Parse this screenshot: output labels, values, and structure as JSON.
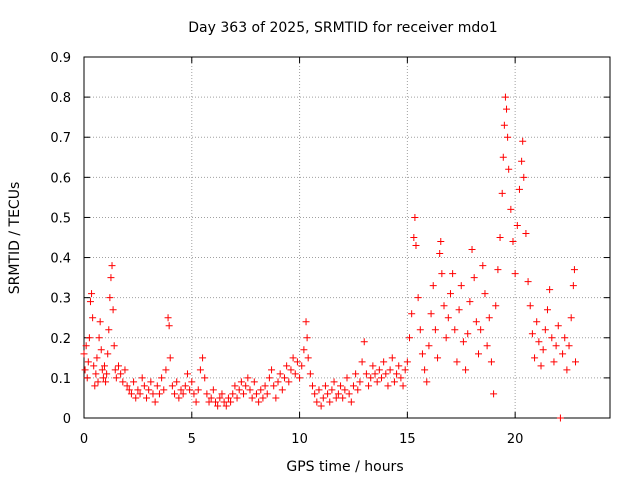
{
  "chart_data": {
    "type": "scatter",
    "title": "Day 363 of 2025, SRMTID for receiver mdo1",
    "xlabel": "GPS time / hours",
    "ylabel": "SRMTID / TECUs",
    "xlim": [
      0,
      24.4
    ],
    "ylim": [
      0,
      0.9
    ],
    "x_ticks": [
      0,
      5,
      10,
      15,
      20
    ],
    "x_tick_labels": [
      "0",
      "5",
      "10",
      "15",
      "20"
    ],
    "y_ticks": [
      0,
      0.1,
      0.2,
      0.3,
      0.4,
      0.5,
      0.6,
      0.7,
      0.8,
      0.9
    ],
    "y_tick_labels": [
      "0",
      "0.1",
      "0.2",
      "0.3",
      "0.4",
      "0.5",
      "0.6",
      "0.7",
      "0.8",
      "0.9"
    ],
    "grid": true,
    "marker": "+",
    "color": "#ff0000",
    "series": [
      {
        "name": "SRMTID",
        "points": [
          [
            0.0,
            0.16
          ],
          [
            0.05,
            0.12
          ],
          [
            0.1,
            0.18
          ],
          [
            0.15,
            0.1
          ],
          [
            0.2,
            0.14
          ],
          [
            0.25,
            0.2
          ],
          [
            0.3,
            0.29
          ],
          [
            0.35,
            0.31
          ],
          [
            0.4,
            0.25
          ],
          [
            0.45,
            0.13
          ],
          [
            0.5,
            0.08
          ],
          [
            0.55,
            0.11
          ],
          [
            0.6,
            0.15
          ],
          [
            0.65,
            0.09
          ],
          [
            0.7,
            0.2
          ],
          [
            0.75,
            0.24
          ],
          [
            0.8,
            0.17
          ],
          [
            0.85,
            0.12
          ],
          [
            0.9,
            0.1
          ],
          [
            0.95,
            0.13
          ],
          [
            1.0,
            0.09
          ],
          [
            1.05,
            0.11
          ],
          [
            1.1,
            0.16
          ],
          [
            1.15,
            0.22
          ],
          [
            1.2,
            0.3
          ],
          [
            1.25,
            0.35
          ],
          [
            1.3,
            0.38
          ],
          [
            1.35,
            0.27
          ],
          [
            1.4,
            0.18
          ],
          [
            1.45,
            0.12
          ],
          [
            1.5,
            0.1
          ],
          [
            1.6,
            0.13
          ],
          [
            1.7,
            0.11
          ],
          [
            1.8,
            0.09
          ],
          [
            1.9,
            0.12
          ],
          [
            2.0,
            0.08
          ],
          [
            2.1,
            0.07
          ],
          [
            2.2,
            0.06
          ],
          [
            2.3,
            0.09
          ],
          [
            2.4,
            0.05
          ],
          [
            2.5,
            0.07
          ],
          [
            2.6,
            0.06
          ],
          [
            2.7,
            0.1
          ],
          [
            2.8,
            0.08
          ],
          [
            2.9,
            0.05
          ],
          [
            3.0,
            0.07
          ],
          [
            3.1,
            0.09
          ],
          [
            3.2,
            0.06
          ],
          [
            3.3,
            0.04
          ],
          [
            3.4,
            0.08
          ],
          [
            3.5,
            0.06
          ],
          [
            3.6,
            0.1
          ],
          [
            3.7,
            0.07
          ],
          [
            3.8,
            0.12
          ],
          [
            3.9,
            0.25
          ],
          [
            3.95,
            0.23
          ],
          [
            4.0,
            0.15
          ],
          [
            4.1,
            0.08
          ],
          [
            4.2,
            0.06
          ],
          [
            4.3,
            0.09
          ],
          [
            4.4,
            0.05
          ],
          [
            4.5,
            0.07
          ],
          [
            4.6,
            0.06
          ],
          [
            4.7,
            0.08
          ],
          [
            4.8,
            0.11
          ],
          [
            4.9,
            0.07
          ],
          [
            5.0,
            0.09
          ],
          [
            5.1,
            0.06
          ],
          [
            5.2,
            0.04
          ],
          [
            5.3,
            0.07
          ],
          [
            5.4,
            0.12
          ],
          [
            5.5,
            0.15
          ],
          [
            5.6,
            0.1
          ],
          [
            5.7,
            0.06
          ],
          [
            5.8,
            0.04
          ],
          [
            5.9,
            0.05
          ],
          [
            6.0,
            0.07
          ],
          [
            6.1,
            0.04
          ],
          [
            6.2,
            0.03
          ],
          [
            6.3,
            0.05
          ],
          [
            6.4,
            0.06
          ],
          [
            6.5,
            0.04
          ],
          [
            6.6,
            0.03
          ],
          [
            6.7,
            0.05
          ],
          [
            6.8,
            0.04
          ],
          [
            6.9,
            0.06
          ],
          [
            7.0,
            0.08
          ],
          [
            7.1,
            0.05
          ],
          [
            7.2,
            0.07
          ],
          [
            7.3,
            0.09
          ],
          [
            7.4,
            0.06
          ],
          [
            7.5,
            0.08
          ],
          [
            7.6,
            0.1
          ],
          [
            7.7,
            0.07
          ],
          [
            7.8,
            0.05
          ],
          [
            7.9,
            0.09
          ],
          [
            8.0,
            0.06
          ],
          [
            8.1,
            0.04
          ],
          [
            8.2,
            0.07
          ],
          [
            8.3,
            0.05
          ],
          [
            8.4,
            0.08
          ],
          [
            8.5,
            0.06
          ],
          [
            8.6,
            0.1
          ],
          [
            8.7,
            0.12
          ],
          [
            8.8,
            0.08
          ],
          [
            8.9,
            0.05
          ],
          [
            9.0,
            0.09
          ],
          [
            9.1,
            0.11
          ],
          [
            9.2,
            0.07
          ],
          [
            9.3,
            0.1
          ],
          [
            9.4,
            0.13
          ],
          [
            9.5,
            0.09
          ],
          [
            9.6,
            0.12
          ],
          [
            9.7,
            0.15
          ],
          [
            9.8,
            0.11
          ],
          [
            9.9,
            0.14
          ],
          [
            10.0,
            0.1
          ],
          [
            10.1,
            0.13
          ],
          [
            10.2,
            0.17
          ],
          [
            10.3,
            0.24
          ],
          [
            10.35,
            0.2
          ],
          [
            10.4,
            0.15
          ],
          [
            10.5,
            0.11
          ],
          [
            10.6,
            0.08
          ],
          [
            10.7,
            0.06
          ],
          [
            10.8,
            0.04
          ],
          [
            10.9,
            0.07
          ],
          [
            11.0,
            0.03
          ],
          [
            11.1,
            0.05
          ],
          [
            11.2,
            0.08
          ],
          [
            11.3,
            0.06
          ],
          [
            11.4,
            0.04
          ],
          [
            11.5,
            0.07
          ],
          [
            11.6,
            0.09
          ],
          [
            11.7,
            0.05
          ],
          [
            11.8,
            0.06
          ],
          [
            11.9,
            0.08
          ],
          [
            12.0,
            0.05
          ],
          [
            12.1,
            0.07
          ],
          [
            12.2,
            0.1
          ],
          [
            12.3,
            0.06
          ],
          [
            12.4,
            0.04
          ],
          [
            12.5,
            0.08
          ],
          [
            12.6,
            0.11
          ],
          [
            12.7,
            0.07
          ],
          [
            12.8,
            0.09
          ],
          [
            12.9,
            0.14
          ],
          [
            13.0,
            0.19
          ],
          [
            13.1,
            0.11
          ],
          [
            13.2,
            0.08
          ],
          [
            13.3,
            0.1
          ],
          [
            13.4,
            0.13
          ],
          [
            13.5,
            0.11
          ],
          [
            13.6,
            0.09
          ],
          [
            13.7,
            0.12
          ],
          [
            13.8,
            0.1
          ],
          [
            13.9,
            0.14
          ],
          [
            14.0,
            0.11
          ],
          [
            14.1,
            0.08
          ],
          [
            14.2,
            0.12
          ],
          [
            14.3,
            0.15
          ],
          [
            14.4,
            0.09
          ],
          [
            14.5,
            0.11
          ],
          [
            14.6,
            0.13
          ],
          [
            14.7,
            0.1
          ],
          [
            14.8,
            0.08
          ],
          [
            14.9,
            0.12
          ],
          [
            15.0,
            0.14
          ],
          [
            15.1,
            0.2
          ],
          [
            15.2,
            0.26
          ],
          [
            15.3,
            0.45
          ],
          [
            15.35,
            0.5
          ],
          [
            15.4,
            0.43
          ],
          [
            15.5,
            0.3
          ],
          [
            15.6,
            0.22
          ],
          [
            15.7,
            0.16
          ],
          [
            15.8,
            0.12
          ],
          [
            15.9,
            0.09
          ],
          [
            16.0,
            0.18
          ],
          [
            16.1,
            0.26
          ],
          [
            16.2,
            0.33
          ],
          [
            16.3,
            0.22
          ],
          [
            16.4,
            0.15
          ],
          [
            16.5,
            0.41
          ],
          [
            16.55,
            0.44
          ],
          [
            16.6,
            0.36
          ],
          [
            16.7,
            0.28
          ],
          [
            16.8,
            0.2
          ],
          [
            16.9,
            0.25
          ],
          [
            17.0,
            0.31
          ],
          [
            17.1,
            0.36
          ],
          [
            17.2,
            0.22
          ],
          [
            17.3,
            0.14
          ],
          [
            17.4,
            0.27
          ],
          [
            17.5,
            0.33
          ],
          [
            17.6,
            0.19
          ],
          [
            17.7,
            0.12
          ],
          [
            17.8,
            0.21
          ],
          [
            17.9,
            0.29
          ],
          [
            18.0,
            0.42
          ],
          [
            18.1,
            0.35
          ],
          [
            18.2,
            0.24
          ],
          [
            18.3,
            0.16
          ],
          [
            18.4,
            0.22
          ],
          [
            18.5,
            0.38
          ],
          [
            18.6,
            0.31
          ],
          [
            18.7,
            0.18
          ],
          [
            18.8,
            0.25
          ],
          [
            18.9,
            0.14
          ],
          [
            19.0,
            0.06
          ],
          [
            19.1,
            0.28
          ],
          [
            19.2,
            0.37
          ],
          [
            19.3,
            0.45
          ],
          [
            19.4,
            0.56
          ],
          [
            19.45,
            0.65
          ],
          [
            19.5,
            0.73
          ],
          [
            19.55,
            0.8
          ],
          [
            19.6,
            0.77
          ],
          [
            19.65,
            0.7
          ],
          [
            19.7,
            0.62
          ],
          [
            19.8,
            0.52
          ],
          [
            19.9,
            0.44
          ],
          [
            20.0,
            0.36
          ],
          [
            20.1,
            0.48
          ],
          [
            20.2,
            0.57
          ],
          [
            20.3,
            0.64
          ],
          [
            20.35,
            0.69
          ],
          [
            20.4,
            0.6
          ],
          [
            20.5,
            0.46
          ],
          [
            20.6,
            0.34
          ],
          [
            20.7,
            0.28
          ],
          [
            20.8,
            0.21
          ],
          [
            20.9,
            0.15
          ],
          [
            21.0,
            0.24
          ],
          [
            21.1,
            0.19
          ],
          [
            21.2,
            0.13
          ],
          [
            21.3,
            0.17
          ],
          [
            21.4,
            0.22
          ],
          [
            21.5,
            0.27
          ],
          [
            21.6,
            0.32
          ],
          [
            21.7,
            0.2
          ],
          [
            21.8,
            0.14
          ],
          [
            21.9,
            0.18
          ],
          [
            22.0,
            0.23
          ],
          [
            22.1,
            0.0
          ],
          [
            22.2,
            0.16
          ],
          [
            22.3,
            0.2
          ],
          [
            22.4,
            0.12
          ],
          [
            22.5,
            0.18
          ],
          [
            22.6,
            0.25
          ],
          [
            22.7,
            0.33
          ],
          [
            22.75,
            0.37
          ],
          [
            22.8,
            0.14
          ]
        ]
      }
    ]
  }
}
